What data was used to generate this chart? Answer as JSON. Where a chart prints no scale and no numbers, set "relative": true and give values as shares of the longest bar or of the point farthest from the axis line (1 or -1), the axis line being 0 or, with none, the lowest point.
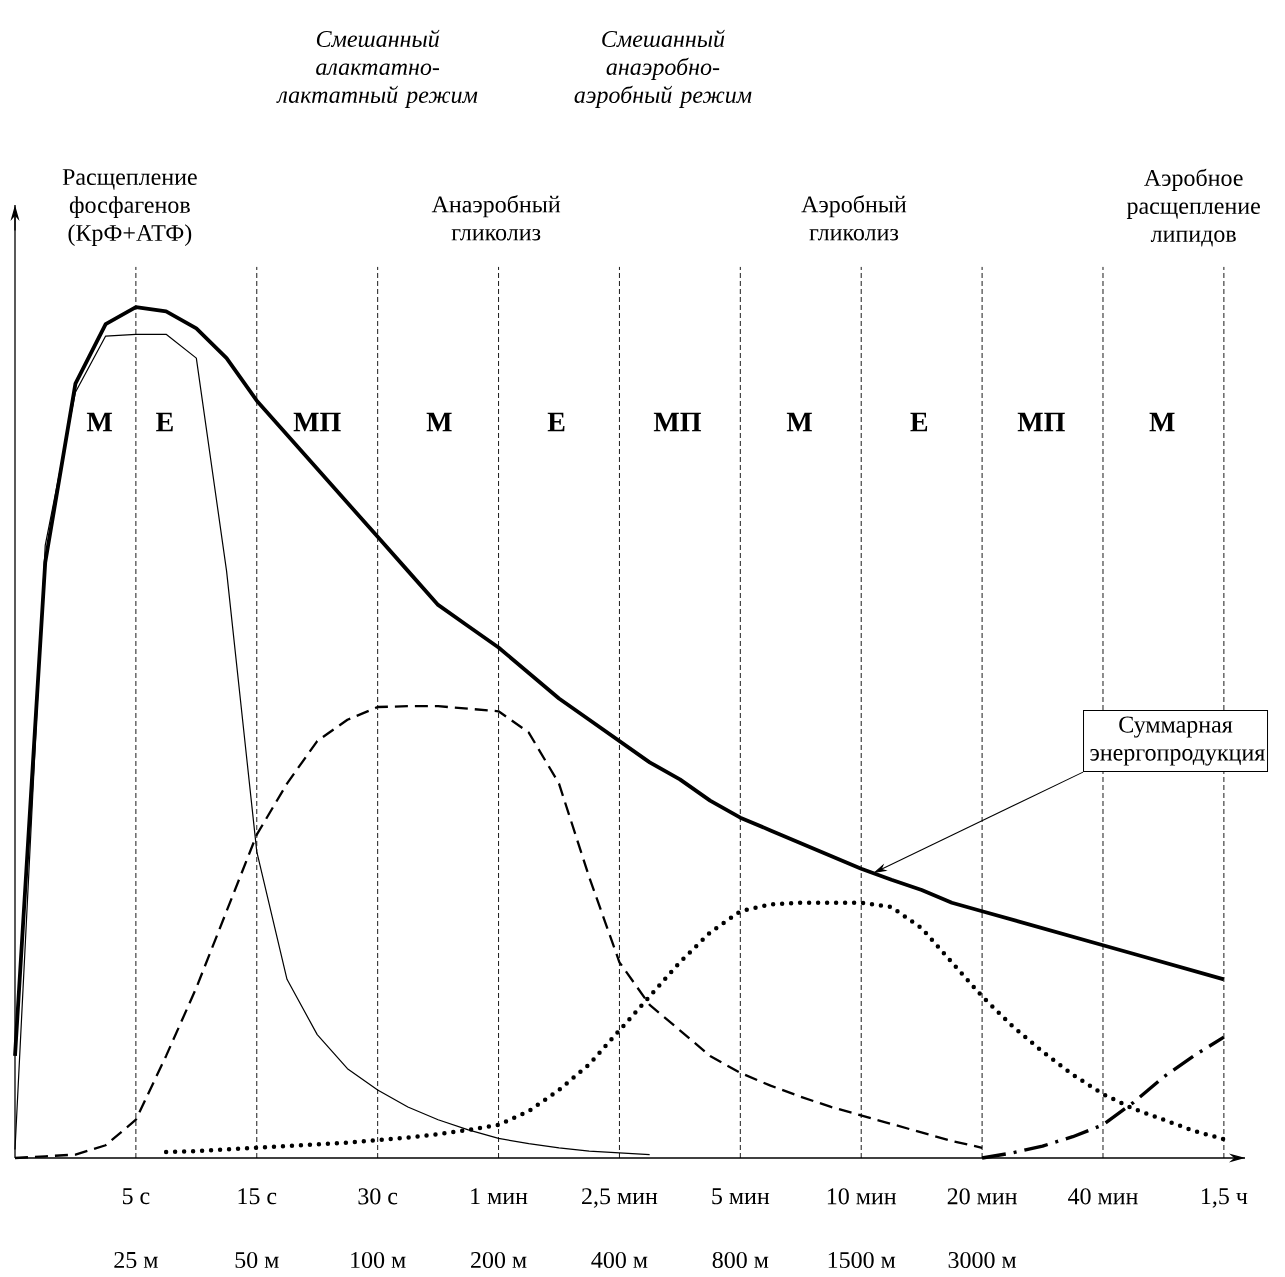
{
  "chart_data": {
    "type": "line",
    "relative": true,
    "grid": "x",
    "tick_labels": "x",
    "categories": [
      null,
      null,
      null,
      null,
      "5 с",
      null,
      null,
      null,
      "15 с",
      null,
      null,
      null,
      "30 с",
      null,
      null,
      null,
      "1 мин",
      null,
      null,
      null,
      "2,5 мин",
      null,
      null,
      null,
      "5 мин",
      null,
      null,
      null,
      "10 мин",
      null,
      null,
      null,
      "20 мин",
      null,
      null,
      null,
      "40 мин",
      null,
      null,
      null,
      "1,5 ч"
    ],
    "series": [
      {
        "color": "#000000",
        "line_style": "solid",
        "values": [
          0.12,
          0.7,
          0.91,
          0.98,
          1.0,
          0.995,
          0.975,
          0.94,
          0.89,
          0.85,
          0.81,
          0.77,
          0.73,
          0.69,
          0.65,
          0.625,
          0.6,
          0.57,
          0.54,
          0.515,
          0.49,
          0.465,
          0.445,
          0.42,
          0.4,
          0.385,
          0.37,
          0.355,
          0.34,
          0.327,
          0.315,
          0.3,
          0.29,
          0.28,
          0.27,
          0.26,
          0.25,
          0.24,
          0.23,
          0.22,
          0.21
        ]
      },
      {
        "color": "#000000",
        "line_style": "solid",
        "values": [
          0.01,
          0.72,
          0.9,
          0.966,
          0.968,
          0.968,
          0.94,
          0.69,
          0.36,
          0.21,
          0.145,
          0.105,
          0.08,
          0.06,
          0.045,
          0.033,
          0.023,
          0.017,
          0.012,
          0.008,
          0.006,
          0.004,
          null,
          null,
          null,
          null,
          null,
          null,
          null,
          null,
          null,
          null,
          null,
          null,
          null,
          null,
          null,
          null,
          null,
          null,
          null
        ]
      },
      {
        "color": "#000000",
        "line_style": "dashed",
        "values": [
          0.0,
          0.002,
          0.004,
          0.015,
          0.045,
          0.12,
          0.2,
          0.29,
          0.38,
          0.44,
          0.49,
          0.515,
          0.53,
          0.531,
          0.531,
          0.528,
          0.525,
          0.5,
          0.44,
          0.33,
          0.23,
          0.18,
          0.15,
          0.12,
          0.1,
          0.085,
          0.072,
          0.06,
          0.05,
          0.04,
          0.03,
          0.02,
          0.012,
          null,
          null,
          null,
          null,
          null,
          null,
          null,
          null
        ]
      },
      {
        "color": "#000000",
        "line_style": "dotted",
        "values": [
          null,
          null,
          null,
          null,
          null,
          0.007,
          0.008,
          0.01,
          0.012,
          0.014,
          0.016,
          0.018,
          0.021,
          0.024,
          0.028,
          0.033,
          0.039,
          0.055,
          0.08,
          0.11,
          0.15,
          0.19,
          0.23,
          0.265,
          0.29,
          0.298,
          0.3,
          0.3,
          0.3,
          0.295,
          0.27,
          0.23,
          0.19,
          0.155,
          0.125,
          0.098,
          0.075,
          0.058,
          0.045,
          0.032,
          0.022
        ]
      },
      {
        "color": "#000000",
        "line_style": "dashdot",
        "values": [
          null,
          null,
          null,
          null,
          null,
          null,
          null,
          null,
          null,
          null,
          null,
          null,
          null,
          null,
          null,
          null,
          null,
          null,
          null,
          null,
          null,
          null,
          null,
          null,
          null,
          null,
          null,
          null,
          null,
          null,
          null,
          null,
          0.0,
          0.006,
          0.014,
          0.025,
          0.039,
          0.065,
          0.095,
          0.12,
          0.142
        ]
      }
    ],
    "annotations": [
      "Смешанный алактатно-лактатный режим",
      "Смешанный анаэробно-аэробный режим",
      "Расщепление фосфагенов (КрФ+АТФ)",
      "Анаэробный гликолиз",
      "Аэробный гликолиз",
      "Аэробное расщепление липидов",
      "М",
      "Е",
      "МП",
      "М",
      "Е",
      "МП",
      "М",
      "Е",
      "МП",
      "М",
      "25 м",
      "50 м",
      "100 м",
      "200 м",
      "400 м",
      "800 м",
      "1500 м",
      "3000 м",
      "Суммарная энергопродукция"
    ]
  }
}
